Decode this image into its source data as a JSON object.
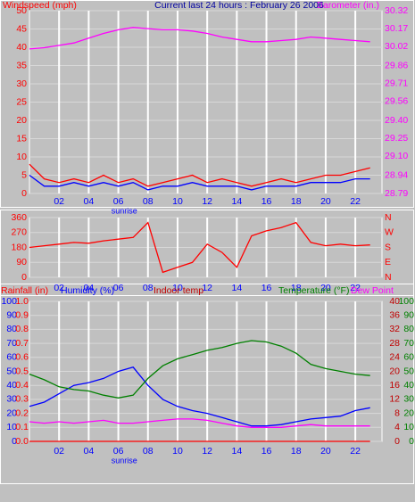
{
  "chart_data": [
    {
      "type": "line",
      "title": "Current last 24 hours : February 26 2006",
      "x": [
        0,
        1,
        2,
        3,
        4,
        5,
        6,
        7,
        8,
        9,
        10,
        11,
        12,
        13,
        14,
        15,
        16,
        17,
        18,
        19,
        20,
        21,
        22,
        23
      ],
      "xlim": [
        0,
        23.8
      ],
      "xticks": [
        {
          "value": 2,
          "label": "02"
        },
        {
          "value": 4,
          "label": "04"
        },
        {
          "value": 6,
          "label": "06"
        },
        {
          "value": 8,
          "label": "08"
        },
        {
          "value": 10,
          "label": "10"
        },
        {
          "value": 12,
          "label": "12"
        },
        {
          "value": 14,
          "label": "14"
        },
        {
          "value": 16,
          "label": "16"
        },
        {
          "value": 18,
          "label": "18"
        },
        {
          "value": 20,
          "label": "20"
        },
        {
          "value": 22,
          "label": "22"
        }
      ],
      "annotation": {
        "text": "sunrise",
        "x": 6.4
      },
      "axes": [
        {
          "name": "Windspeed (mph)",
          "color": "#ff0000",
          "lim": [
            0,
            50
          ],
          "ticks": [
            0,
            5,
            10,
            15,
            20,
            25,
            30,
            35,
            40,
            45,
            50
          ]
        },
        {
          "name": "Barometer (in.)",
          "color": "#ff00ff",
          "lim": [
            28.79,
            30.32
          ],
          "ticks": [
            28.79,
            28.94,
            {
              "value": 29.1,
              "label": "29.10"
            },
            29.25,
            {
              "value": 29.4,
              "label": "29.40"
            },
            29.56,
            29.71,
            29.86,
            30.02,
            30.17,
            30.32
          ]
        }
      ],
      "series": [
        {
          "color": "#ff0000",
          "axis": 0,
          "values": [
            8,
            4,
            3,
            4,
            3,
            5,
            3,
            4,
            2,
            3,
            4,
            5,
            3,
            4,
            3,
            2,
            3,
            4,
            3,
            4,
            5,
            5,
            6,
            7
          ]
        },
        {
          "color": "#0000ff",
          "axis": 0,
          "values": [
            5,
            2,
            2,
            3,
            2,
            3,
            2,
            3,
            1,
            2,
            2,
            3,
            2,
            2,
            2,
            1,
            2,
            2,
            2,
            3,
            3,
            3,
            4,
            4
          ]
        },
        {
          "color": "#ff00ff",
          "axis": 1,
          "values": [
            30.0,
            30.01,
            30.03,
            30.05,
            30.09,
            30.13,
            30.16,
            30.18,
            30.17,
            30.16,
            30.16,
            30.15,
            30.13,
            30.1,
            30.08,
            30.06,
            30.06,
            30.07,
            30.08,
            30.1,
            30.09,
            30.08,
            30.07,
            30.06
          ]
        }
      ]
    },
    {
      "type": "line",
      "x": [
        0,
        1,
        2,
        3,
        4,
        5,
        6,
        7,
        8,
        9,
        10,
        11,
        12,
        13,
        14,
        15,
        16,
        17,
        18,
        19,
        20,
        21,
        22,
        23
      ],
      "xlim": [
        0,
        23.8
      ],
      "xticks": [
        {
          "value": 2,
          "label": "02"
        },
        {
          "value": 4,
          "label": "04"
        },
        {
          "value": 6,
          "label": "06"
        },
        {
          "value": 8,
          "label": "08"
        },
        {
          "value": 10,
          "label": "10"
        },
        {
          "value": 12,
          "label": "12"
        },
        {
          "value": 14,
          "label": "14"
        },
        {
          "value": 16,
          "label": "16"
        },
        {
          "value": 18,
          "label": "18"
        },
        {
          "value": 20,
          "label": "20"
        },
        {
          "value": 22,
          "label": "22"
        }
      ],
      "axes": [
        {
          "color": "#ff0000",
          "lim": [
            0,
            360
          ],
          "ticks": [
            0,
            90,
            180,
            270,
            360
          ]
        },
        {
          "color": "#ff0000",
          "lim": [
            0,
            360
          ],
          "ticks": [
            {
              "value": 0,
              "label": "N"
            },
            {
              "value": 90,
              "label": "E"
            },
            {
              "value": 180,
              "label": "S"
            },
            {
              "value": 270,
              "label": "W"
            },
            {
              "value": 360,
              "label": "N"
            }
          ]
        }
      ],
      "series": [
        {
          "color": "#ff0000",
          "axis": 0,
          "values": [
            180,
            190,
            200,
            210,
            205,
            220,
            230,
            240,
            330,
            30,
            60,
            90,
            200,
            150,
            60,
            250,
            280,
            300,
            330,
            210,
            190,
            200,
            190,
            195
          ]
        }
      ]
    },
    {
      "type": "line",
      "x": [
        0,
        1,
        2,
        3,
        4,
        5,
        6,
        7,
        8,
        9,
        10,
        11,
        12,
        13,
        14,
        15,
        16,
        17,
        18,
        19,
        20,
        21,
        22,
        23
      ],
      "xlim": [
        0,
        23.8
      ],
      "xticks": [
        {
          "value": 2,
          "label": "02"
        },
        {
          "value": 4,
          "label": "04"
        },
        {
          "value": 6,
          "label": "06"
        },
        {
          "value": 8,
          "label": "08"
        },
        {
          "value": 10,
          "label": "10"
        },
        {
          "value": 12,
          "label": "12"
        },
        {
          "value": 14,
          "label": "14"
        },
        {
          "value": 16,
          "label": "16"
        },
        {
          "value": 18,
          "label": "18"
        },
        {
          "value": 20,
          "label": "20"
        },
        {
          "value": 22,
          "label": "22"
        }
      ],
      "annotation": {
        "text": "sunrise",
        "x": 6.4
      },
      "axes": [
        {
          "name": "Humidity (%)",
          "color": "#0000ff",
          "lim": [
            0,
            100
          ],
          "ticks": [
            0,
            10,
            20,
            30,
            40,
            50,
            60,
            70,
            80,
            90,
            100
          ]
        },
        {
          "name": "Rainfall (in)",
          "color": "#ff0000",
          "lim": [
            0,
            1
          ],
          "ticks": [
            {
              "value": 0,
              "label": "0.0"
            },
            0.1,
            0.2,
            0.3,
            0.4,
            0.5,
            0.6,
            0.7,
            0.8,
            0.9,
            {
              "value": 1,
              "label": "1.0"
            }
          ]
        },
        {
          "name": "Indoor temp",
          "color": "#c00000",
          "lim": [
            0,
            40
          ],
          "ticks": [
            0,
            4,
            8,
            12,
            16,
            20,
            24,
            28,
            32,
            36,
            40
          ]
        },
        {
          "name": "Temperature (°F)",
          "color": "#008000",
          "lim": [
            0,
            100
          ],
          "ticks": [
            0,
            10,
            20,
            30,
            40,
            50,
            60,
            70,
            80,
            90,
            100
          ]
        }
      ],
      "series": [
        {
          "color": "#ff0000",
          "axis": 1,
          "values": [
            0,
            0,
            0,
            0,
            0,
            0,
            0,
            0,
            0,
            0,
            0,
            0,
            0,
            0,
            0,
            0,
            0,
            0,
            0,
            0,
            0,
            0,
            0,
            0
          ]
        },
        {
          "color": "#0000ff",
          "axis": 0,
          "values": [
            25,
            28,
            34,
            40,
            42,
            45,
            50,
            53,
            40,
            30,
            25,
            22,
            20,
            17,
            14,
            11,
            11,
            12,
            14,
            16,
            17,
            18,
            22,
            24
          ]
        },
        {
          "color": "#008000",
          "axis": 3,
          "values": [
            48,
            44,
            39,
            37,
            36,
            33,
            31,
            33,
            45,
            54,
            59,
            62,
            65,
            67,
            70,
            72,
            71,
            68,
            63,
            55,
            52,
            50,
            48,
            47
          ]
        },
        {
          "name": "Dew Point",
          "color": "#ff00ff",
          "axis": 3,
          "values": [
            14,
            13,
            14,
            13,
            14,
            15,
            13,
            13,
            14,
            15,
            16,
            16,
            15,
            13,
            11,
            10,
            10,
            10,
            11,
            12,
            11,
            11,
            11,
            11
          ]
        }
      ]
    }
  ]
}
